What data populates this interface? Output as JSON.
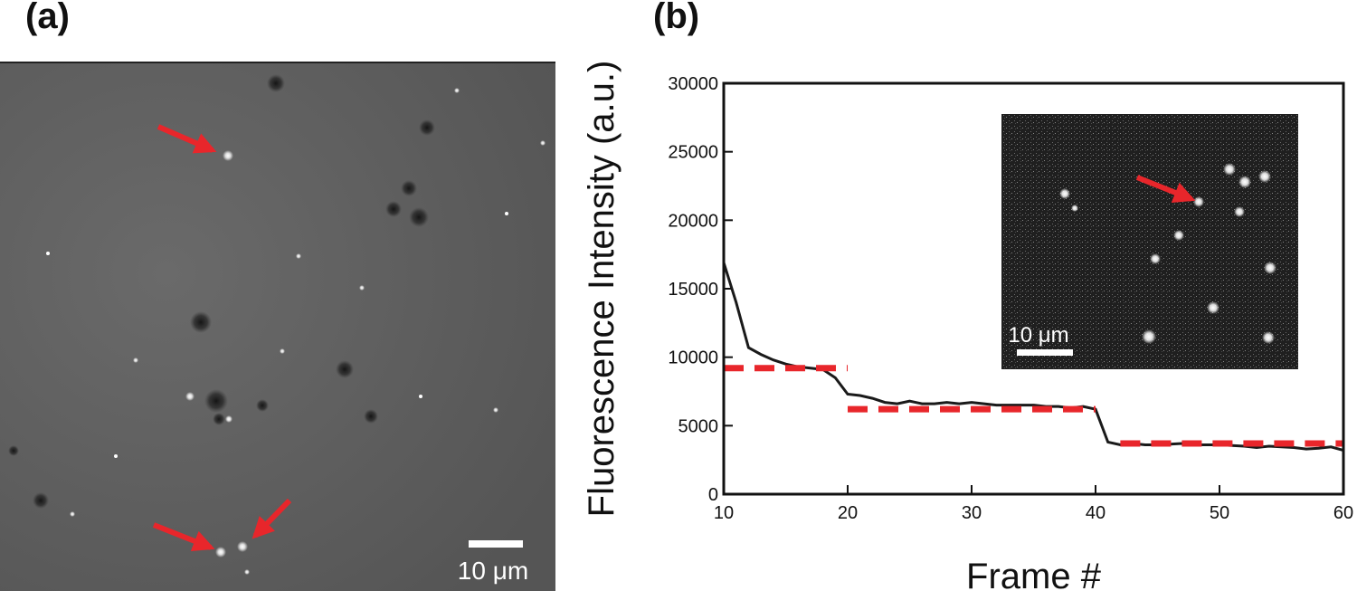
{
  "panels": {
    "a": {
      "label": "(a)",
      "scale_bar_label": "10 μm"
    },
    "b": {
      "label": "(b)",
      "inset_scale_bar_label": "10 μm"
    }
  },
  "colors": {
    "trace": "#1a1a1a",
    "steps": "#e8262b",
    "arrow": "#e8262b",
    "micrograph_bg": "#5e5e5e",
    "inset_bg": "#222222"
  },
  "chart_data": {
    "type": "line",
    "xlabel": "Frame #",
    "ylabel": "Fluorescence Intensity (a.u.)",
    "xlim": [
      10,
      60
    ],
    "ylim": [
      0,
      30000
    ],
    "xticks": [
      "10",
      "20",
      "30",
      "40",
      "50",
      "60"
    ],
    "yticks": [
      "0",
      "5000",
      "10000",
      "15000",
      "20000",
      "25000",
      "30000"
    ],
    "series": [
      {
        "style": "solid",
        "x": [
          10,
          11,
          12,
          13,
          14,
          15,
          16,
          17,
          18,
          19,
          20,
          21,
          22,
          23,
          24,
          25,
          26,
          27,
          28,
          29,
          30,
          31,
          32,
          33,
          34,
          35,
          36,
          37,
          38,
          39,
          40,
          41,
          42,
          43,
          44,
          45,
          46,
          47,
          48,
          49,
          50,
          51,
          52,
          53,
          54,
          55,
          56,
          57,
          58,
          59,
          60
        ],
        "y": [
          16900,
          14000,
          10700,
          10200,
          9800,
          9500,
          9300,
          9200,
          9100,
          8500,
          7300,
          7200,
          7000,
          6700,
          6600,
          6800,
          6600,
          6600,
          6700,
          6600,
          6700,
          6600,
          6500,
          6500,
          6500,
          6500,
          6400,
          6400,
          6300,
          6400,
          6200,
          3800,
          3600,
          3700,
          3600,
          3600,
          3650,
          3700,
          3600,
          3600,
          3600,
          3550,
          3500,
          3400,
          3500,
          3450,
          3400,
          3300,
          3350,
          3450,
          3200
        ]
      },
      {
        "style": "dashed",
        "segments": [
          {
            "x": [
              10,
              20
            ],
            "y": 9200
          },
          {
            "x": [
              20,
              40
            ],
            "y": 6200
          },
          {
            "x": [
              42,
              60
            ],
            "y": 3700
          }
        ]
      }
    ]
  }
}
